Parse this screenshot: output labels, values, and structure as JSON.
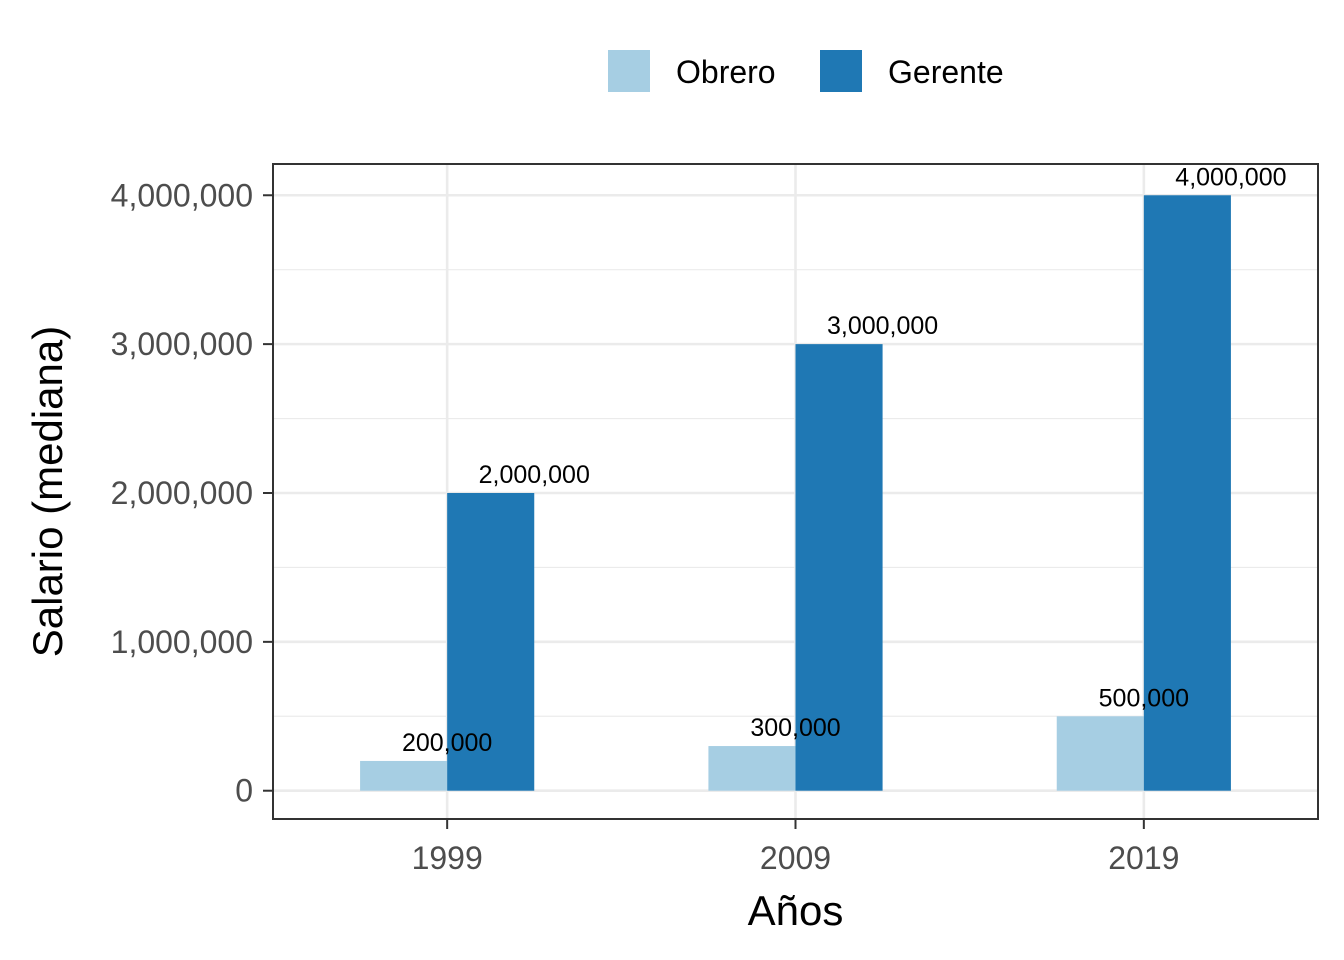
{
  "chart_data": {
    "type": "bar",
    "title": "",
    "xlabel": "Años",
    "ylabel": "Salario (mediana)",
    "categories": [
      "1999",
      "2009",
      "2019"
    ],
    "series": [
      {
        "name": "Obrero",
        "color": "#a6cee3",
        "values": [
          200000,
          300000,
          500000
        ],
        "labels": [
          "200,000",
          "300,000",
          "500,000"
        ]
      },
      {
        "name": "Gerente",
        "color": "#1f78b4",
        "values": [
          2000000,
          3000000,
          4000000
        ],
        "labels": [
          "2,000,000",
          "3,000,000",
          "4,000,000"
        ]
      }
    ],
    "ylim": [
      -190000,
      4210000
    ],
    "yticks": [
      0,
      1000000,
      2000000,
      3000000,
      4000000
    ],
    "ytick_labels": [
      "0",
      "1,000,000",
      "2,000,000",
      "3,000,000",
      "4,000,000"
    ],
    "grid": true,
    "legend_position": "top"
  }
}
